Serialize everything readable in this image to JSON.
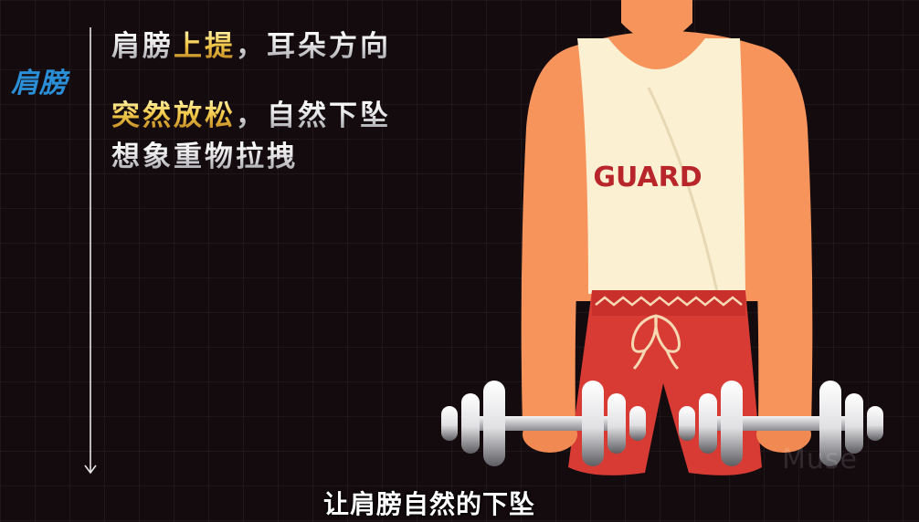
{
  "section_label": "肩膀",
  "lines": [
    [
      {
        "text": "肩膀",
        "style": "silver"
      },
      {
        "text": "上提",
        "style": "gold"
      },
      {
        "text": "，耳朵方向",
        "style": "silver"
      }
    ],
    [
      {
        "text": "突然放松",
        "style": "gold"
      },
      {
        "text": "，自然下坠",
        "style": "silver"
      }
    ],
    [
      {
        "text": "想象重物拉拽",
        "style": "silver"
      }
    ]
  ],
  "shirt_text": "GUARD",
  "subtitle": "让肩膀自然的下坠",
  "watermark": "Muse",
  "colors": {
    "background": "#140b0f",
    "label_blue": "#2b8fd8",
    "skin": "#f6945c",
    "tank_top": "#fbf0d2",
    "shorts": "#d73b34",
    "guard_text": "#b8262c"
  },
  "icons": {
    "timeline": "down-arrow-icon",
    "dumbbell": "dumbbell-icon"
  }
}
